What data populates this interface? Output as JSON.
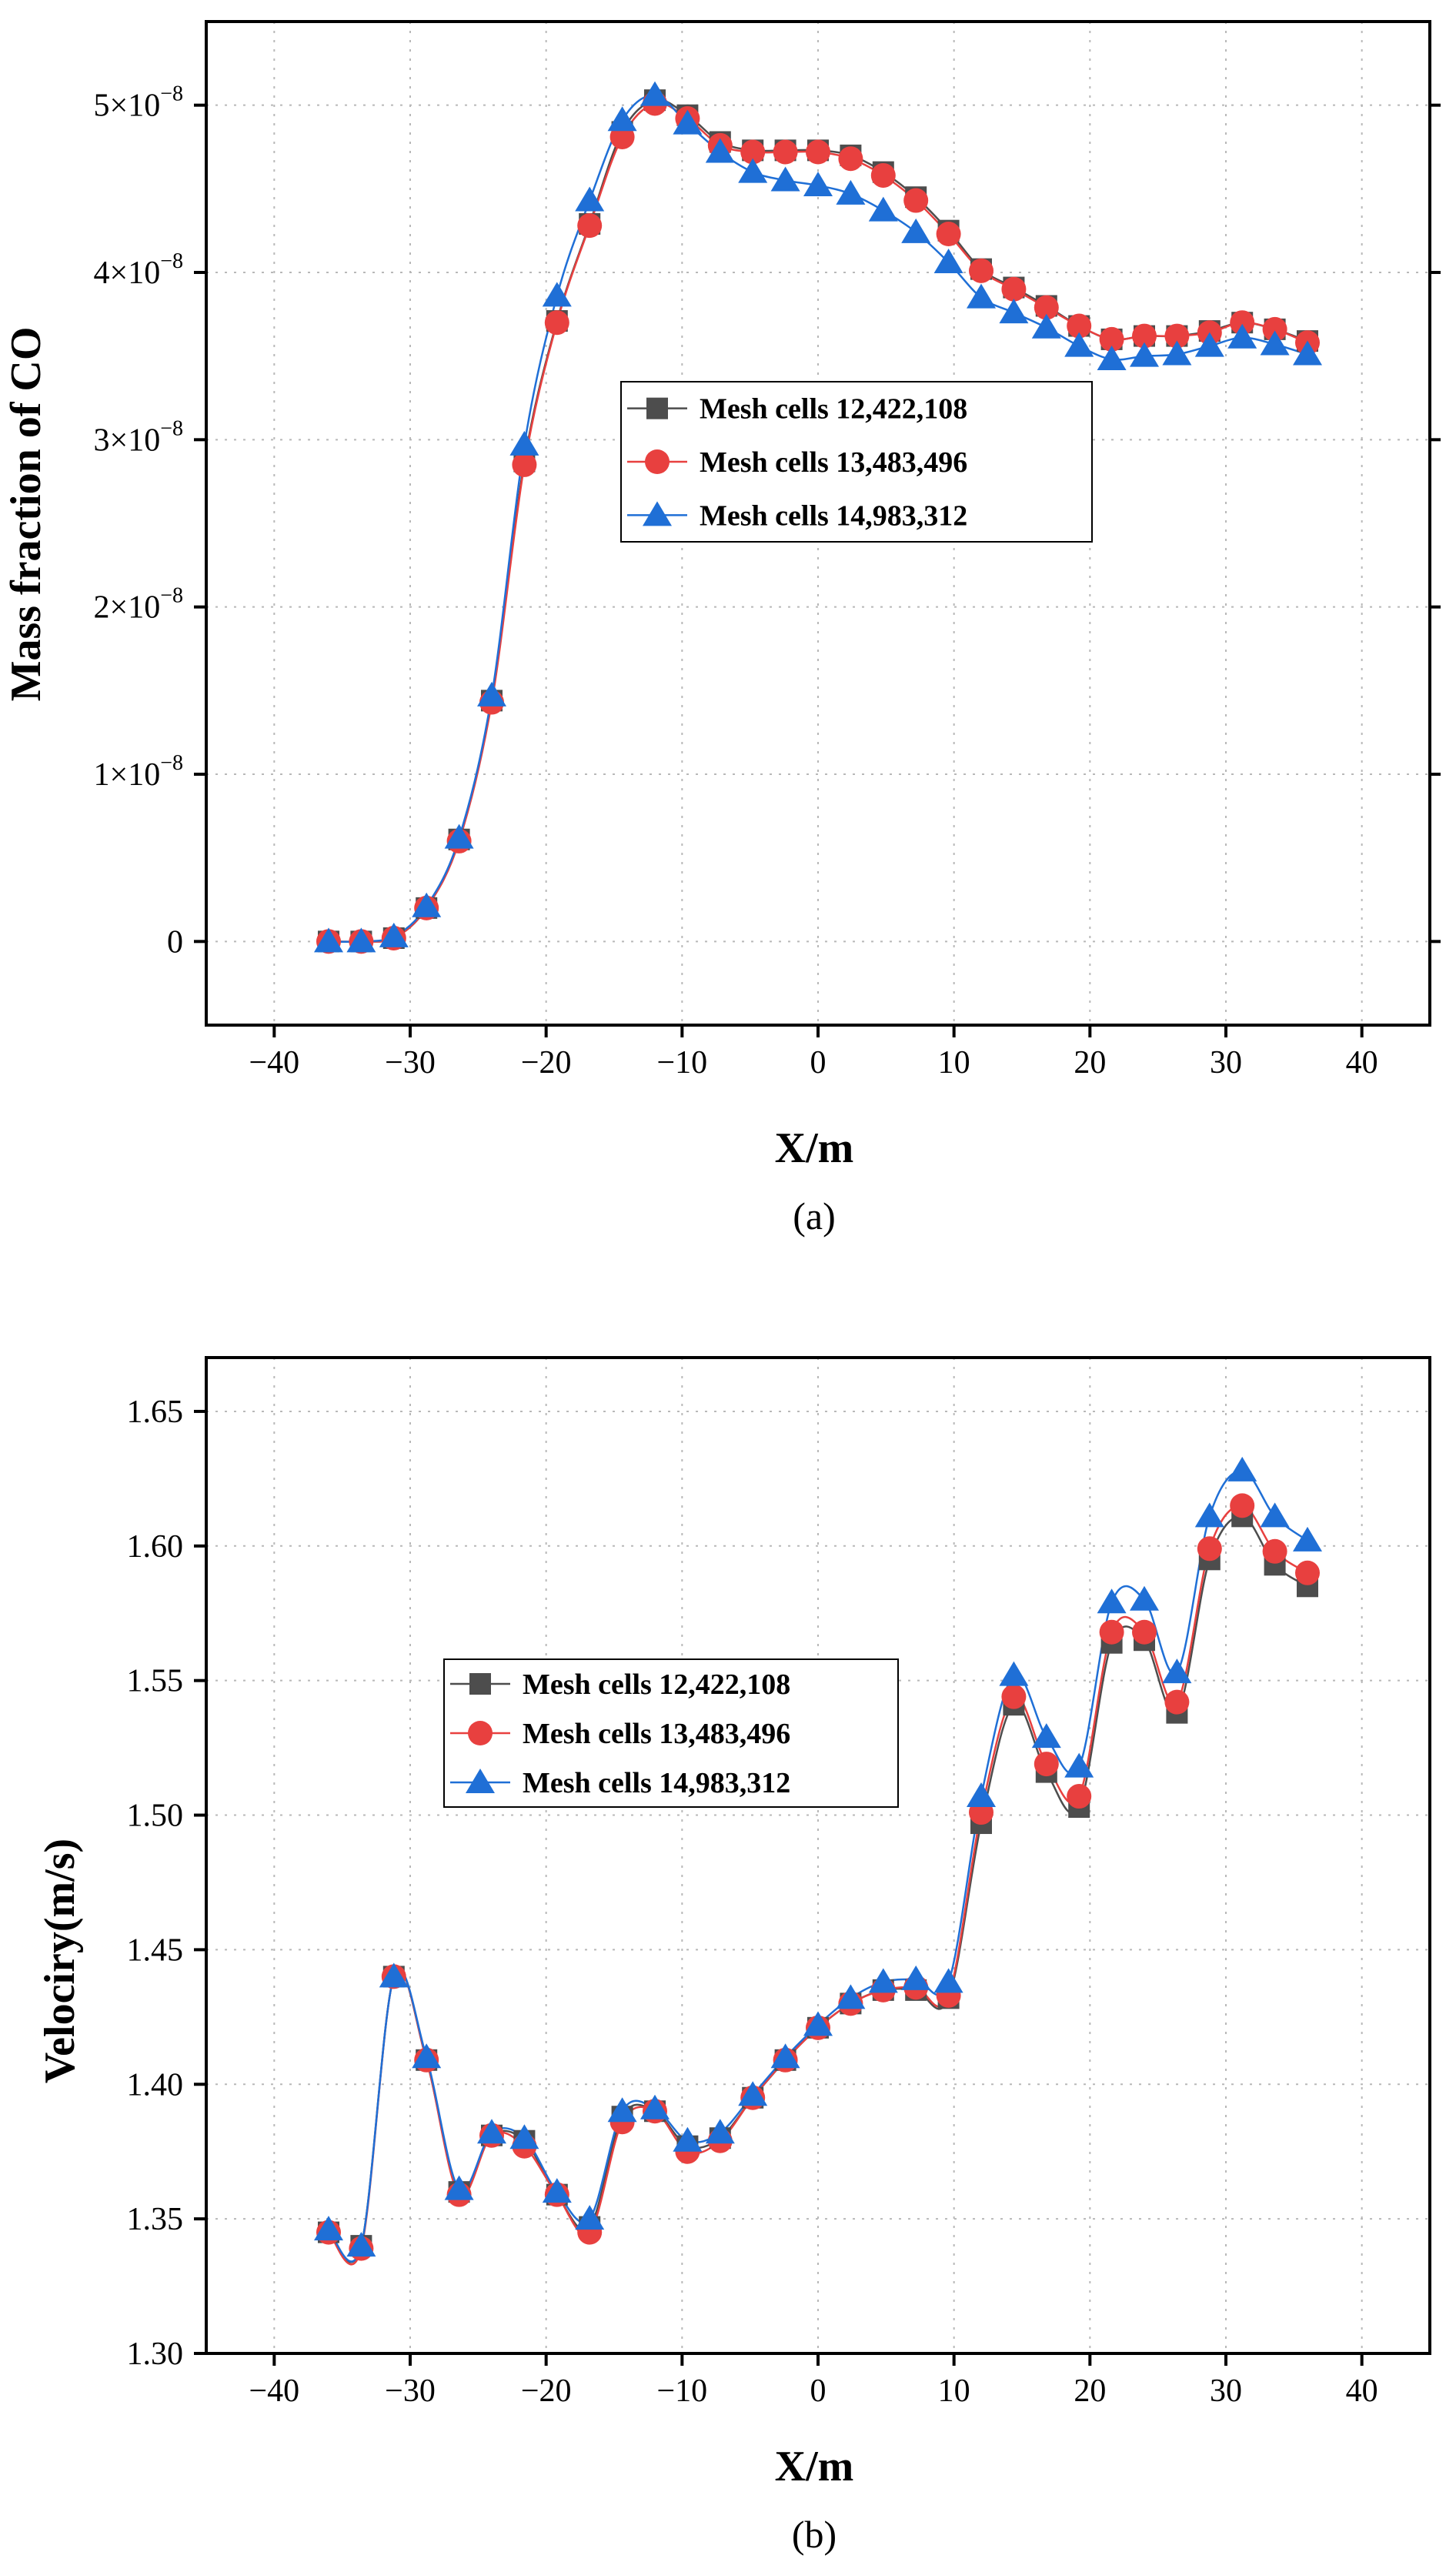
{
  "chart_data": [
    {
      "type": "line",
      "panel_label": "(a)",
      "xlabel": "X/m",
      "ylabel": "Mass fraction of CO",
      "xlim": [
        -45,
        45
      ],
      "ylim": [
        -5e-09,
        5.5e-08
      ],
      "xticks": [
        -40,
        -30,
        -20,
        -10,
        0,
        10,
        20,
        30,
        40
      ],
      "xtick_labels": [
        "−40",
        "−30",
        "−20",
        "−10",
        "0",
        "10",
        "20",
        "30",
        "40"
      ],
      "yticks": [
        0,
        1e-08,
        2e-08,
        3e-08,
        4e-08,
        5e-08
      ],
      "ytick_labels": [
        {
          "base": "0",
          "exp": ""
        },
        {
          "base": "1×10",
          "exp": "−8"
        },
        {
          "base": "2×10",
          "exp": "−8"
        },
        {
          "base": "3×10",
          "exp": "−8"
        },
        {
          "base": "4×10",
          "exp": "−8"
        },
        {
          "base": "5×10",
          "exp": "−8"
        }
      ],
      "grid": true,
      "legend_position": "center-right",
      "x": [
        -36,
        -33.6,
        -31.2,
        -28.8,
        -26.4,
        -24,
        -21.6,
        -19.2,
        -16.8,
        -14.4,
        -12,
        -9.6,
        -7.2,
        -4.8,
        -2.4,
        0,
        2.4,
        4.8,
        7.2,
        9.6,
        12,
        14.4,
        16.8,
        19.2,
        21.6,
        24,
        26.4,
        28.8,
        31.2,
        33.6,
        36
      ],
      "series": [
        {
          "name": "Mesh cells 12,422,108",
          "color": "#4d4d4d",
          "marker": "square",
          "values": [
            0,
            0,
            2e-10,
            2e-09,
            6.1e-09,
            1.44e-08,
            2.87e-08,
            3.71e-08,
            4.29e-08,
            4.84e-08,
            5.03e-08,
            4.94e-08,
            4.78e-08,
            4.73e-08,
            4.73e-08,
            4.73e-08,
            4.7e-08,
            4.6e-08,
            4.45e-08,
            4.25e-08,
            4.02e-08,
            3.91e-08,
            3.8e-08,
            3.68e-08,
            3.6e-08,
            3.62e-08,
            3.62e-08,
            3.65e-08,
            3.7e-08,
            3.66e-08,
            3.59e-08
          ]
        },
        {
          "name": "Mesh cells 13,483,496",
          "color": "#e8403f",
          "marker": "circle",
          "values": [
            0,
            0,
            2e-10,
            2e-09,
            6e-09,
            1.43e-08,
            2.85e-08,
            3.7e-08,
            4.28e-08,
            4.81e-08,
            5.01e-08,
            4.92e-08,
            4.76e-08,
            4.72e-08,
            4.72e-08,
            4.72e-08,
            4.68e-08,
            4.58e-08,
            4.43e-08,
            4.23e-08,
            4.01e-08,
            3.9e-08,
            3.79e-08,
            3.68e-08,
            3.6e-08,
            3.62e-08,
            3.62e-08,
            3.64e-08,
            3.7e-08,
            3.66e-08,
            3.58e-08
          ]
        },
        {
          "name": "Mesh cells 14,983,312",
          "color": "#1f6fd6",
          "marker": "triangle",
          "values": [
            0,
            0,
            3e-10,
            2.1e-09,
            6.2e-09,
            1.47e-08,
            2.97e-08,
            3.86e-08,
            4.43e-08,
            4.91e-08,
            5.06e-08,
            4.89e-08,
            4.72e-08,
            4.6e-08,
            4.55e-08,
            4.52e-08,
            4.47e-08,
            4.37e-08,
            4.24e-08,
            4.06e-08,
            3.85e-08,
            3.76e-08,
            3.67e-08,
            3.56e-08,
            3.48e-08,
            3.5e-08,
            3.51e-08,
            3.56e-08,
            3.61e-08,
            3.57e-08,
            3.51e-08
          ]
        }
      ]
    },
    {
      "type": "line",
      "panel_label": "(b)",
      "xlabel": "X/m",
      "ylabel": "Velociry(m/s)",
      "xlim": [
        -45,
        45
      ],
      "ylim": [
        1.3,
        1.67
      ],
      "xticks": [
        -40,
        -30,
        -20,
        -10,
        0,
        10,
        20,
        30,
        40
      ],
      "xtick_labels": [
        "−40",
        "−30",
        "−20",
        "−10",
        "0",
        "10",
        "20",
        "30",
        "40"
      ],
      "yticks": [
        1.3,
        1.35,
        1.4,
        1.45,
        1.5,
        1.55,
        1.6,
        1.65
      ],
      "ytick_labels": [
        {
          "base": "1.30",
          "exp": ""
        },
        {
          "base": "1.35",
          "exp": ""
        },
        {
          "base": "1.40",
          "exp": ""
        },
        {
          "base": "1.45",
          "exp": ""
        },
        {
          "base": "1.50",
          "exp": ""
        },
        {
          "base": "1.55",
          "exp": ""
        },
        {
          "base": "1.60",
          "exp": ""
        },
        {
          "base": "1.65",
          "exp": ""
        }
      ],
      "grid": true,
      "legend_position": "center-left",
      "x": [
        -36,
        -33.6,
        -31.2,
        -28.8,
        -26.4,
        -24,
        -21.6,
        -19.2,
        -16.8,
        -14.4,
        -12,
        -9.6,
        -7.2,
        -4.8,
        -2.4,
        0,
        2.4,
        4.8,
        7.2,
        9.6,
        12,
        14.4,
        16.8,
        19.2,
        21.6,
        24,
        26.4,
        28.8,
        31.2,
        33.6,
        36
      ],
      "series": [
        {
          "name": "Mesh cells 12,422,108",
          "color": "#4d4d4d",
          "marker": "square",
          "values": [
            1.345,
            1.34,
            1.44,
            1.409,
            1.36,
            1.381,
            1.379,
            1.359,
            1.347,
            1.388,
            1.39,
            1.377,
            1.38,
            1.395,
            1.409,
            1.421,
            1.43,
            1.435,
            1.435,
            1.432,
            1.497,
            1.541,
            1.516,
            1.503,
            1.564,
            1.565,
            1.538,
            1.595,
            1.611,
            1.593,
            1.585
          ]
        },
        {
          "name": "Mesh cells 13,483,496",
          "color": "#e8403f",
          "marker": "circle",
          "values": [
            1.345,
            1.339,
            1.44,
            1.409,
            1.359,
            1.381,
            1.377,
            1.359,
            1.345,
            1.386,
            1.39,
            1.375,
            1.379,
            1.395,
            1.409,
            1.421,
            1.43,
            1.435,
            1.436,
            1.433,
            1.501,
            1.544,
            1.519,
            1.507,
            1.568,
            1.568,
            1.542,
            1.599,
            1.615,
            1.598,
            1.59
          ]
        },
        {
          "name": "Mesh cells 14,983,312",
          "color": "#1f6fd6",
          "marker": "triangle",
          "values": [
            1.346,
            1.34,
            1.44,
            1.41,
            1.361,
            1.382,
            1.38,
            1.36,
            1.35,
            1.39,
            1.391,
            1.379,
            1.382,
            1.396,
            1.41,
            1.422,
            1.432,
            1.438,
            1.439,
            1.438,
            1.507,
            1.552,
            1.529,
            1.518,
            1.579,
            1.58,
            1.553,
            1.611,
            1.628,
            1.611,
            1.602
          ]
        }
      ]
    }
  ]
}
